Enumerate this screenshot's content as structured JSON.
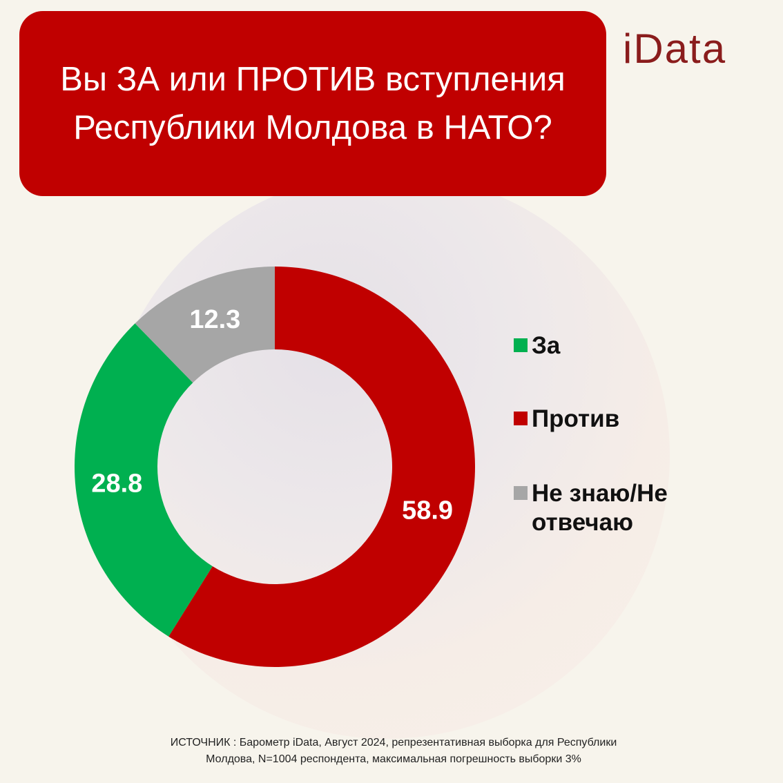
{
  "title": "Вы ЗА или ПРОТИВ вступления Республики Молдова в НАТО?",
  "logo": "iData",
  "source_lines": [
    "ИСТОЧНИК : Барометр iData, Август 2024, репрезентативная выборка для Республики",
    "Молдова, N=1004 респондента, максимальная погрешность выборки 3%"
  ],
  "colors": {
    "title_bg": "#c00000",
    "logo": "#8a1c1c"
  },
  "chart_data": {
    "type": "pie",
    "donut": true,
    "legend_position": "right",
    "slices": [
      {
        "label": "Против",
        "value": 58.9,
        "color": "#c00000"
      },
      {
        "label": "За",
        "value": 28.8,
        "color": "#00b050"
      },
      {
        "label": "Не знаю/Не отвечаю",
        "value": 12.3,
        "color": "#a6a6a6"
      }
    ],
    "legend": [
      {
        "label": "За",
        "color": "#00b050"
      },
      {
        "label": "Против",
        "color": "#c00000"
      },
      {
        "label": "Не знаю/Не отвечаю",
        "color": "#a6a6a6"
      }
    ]
  }
}
